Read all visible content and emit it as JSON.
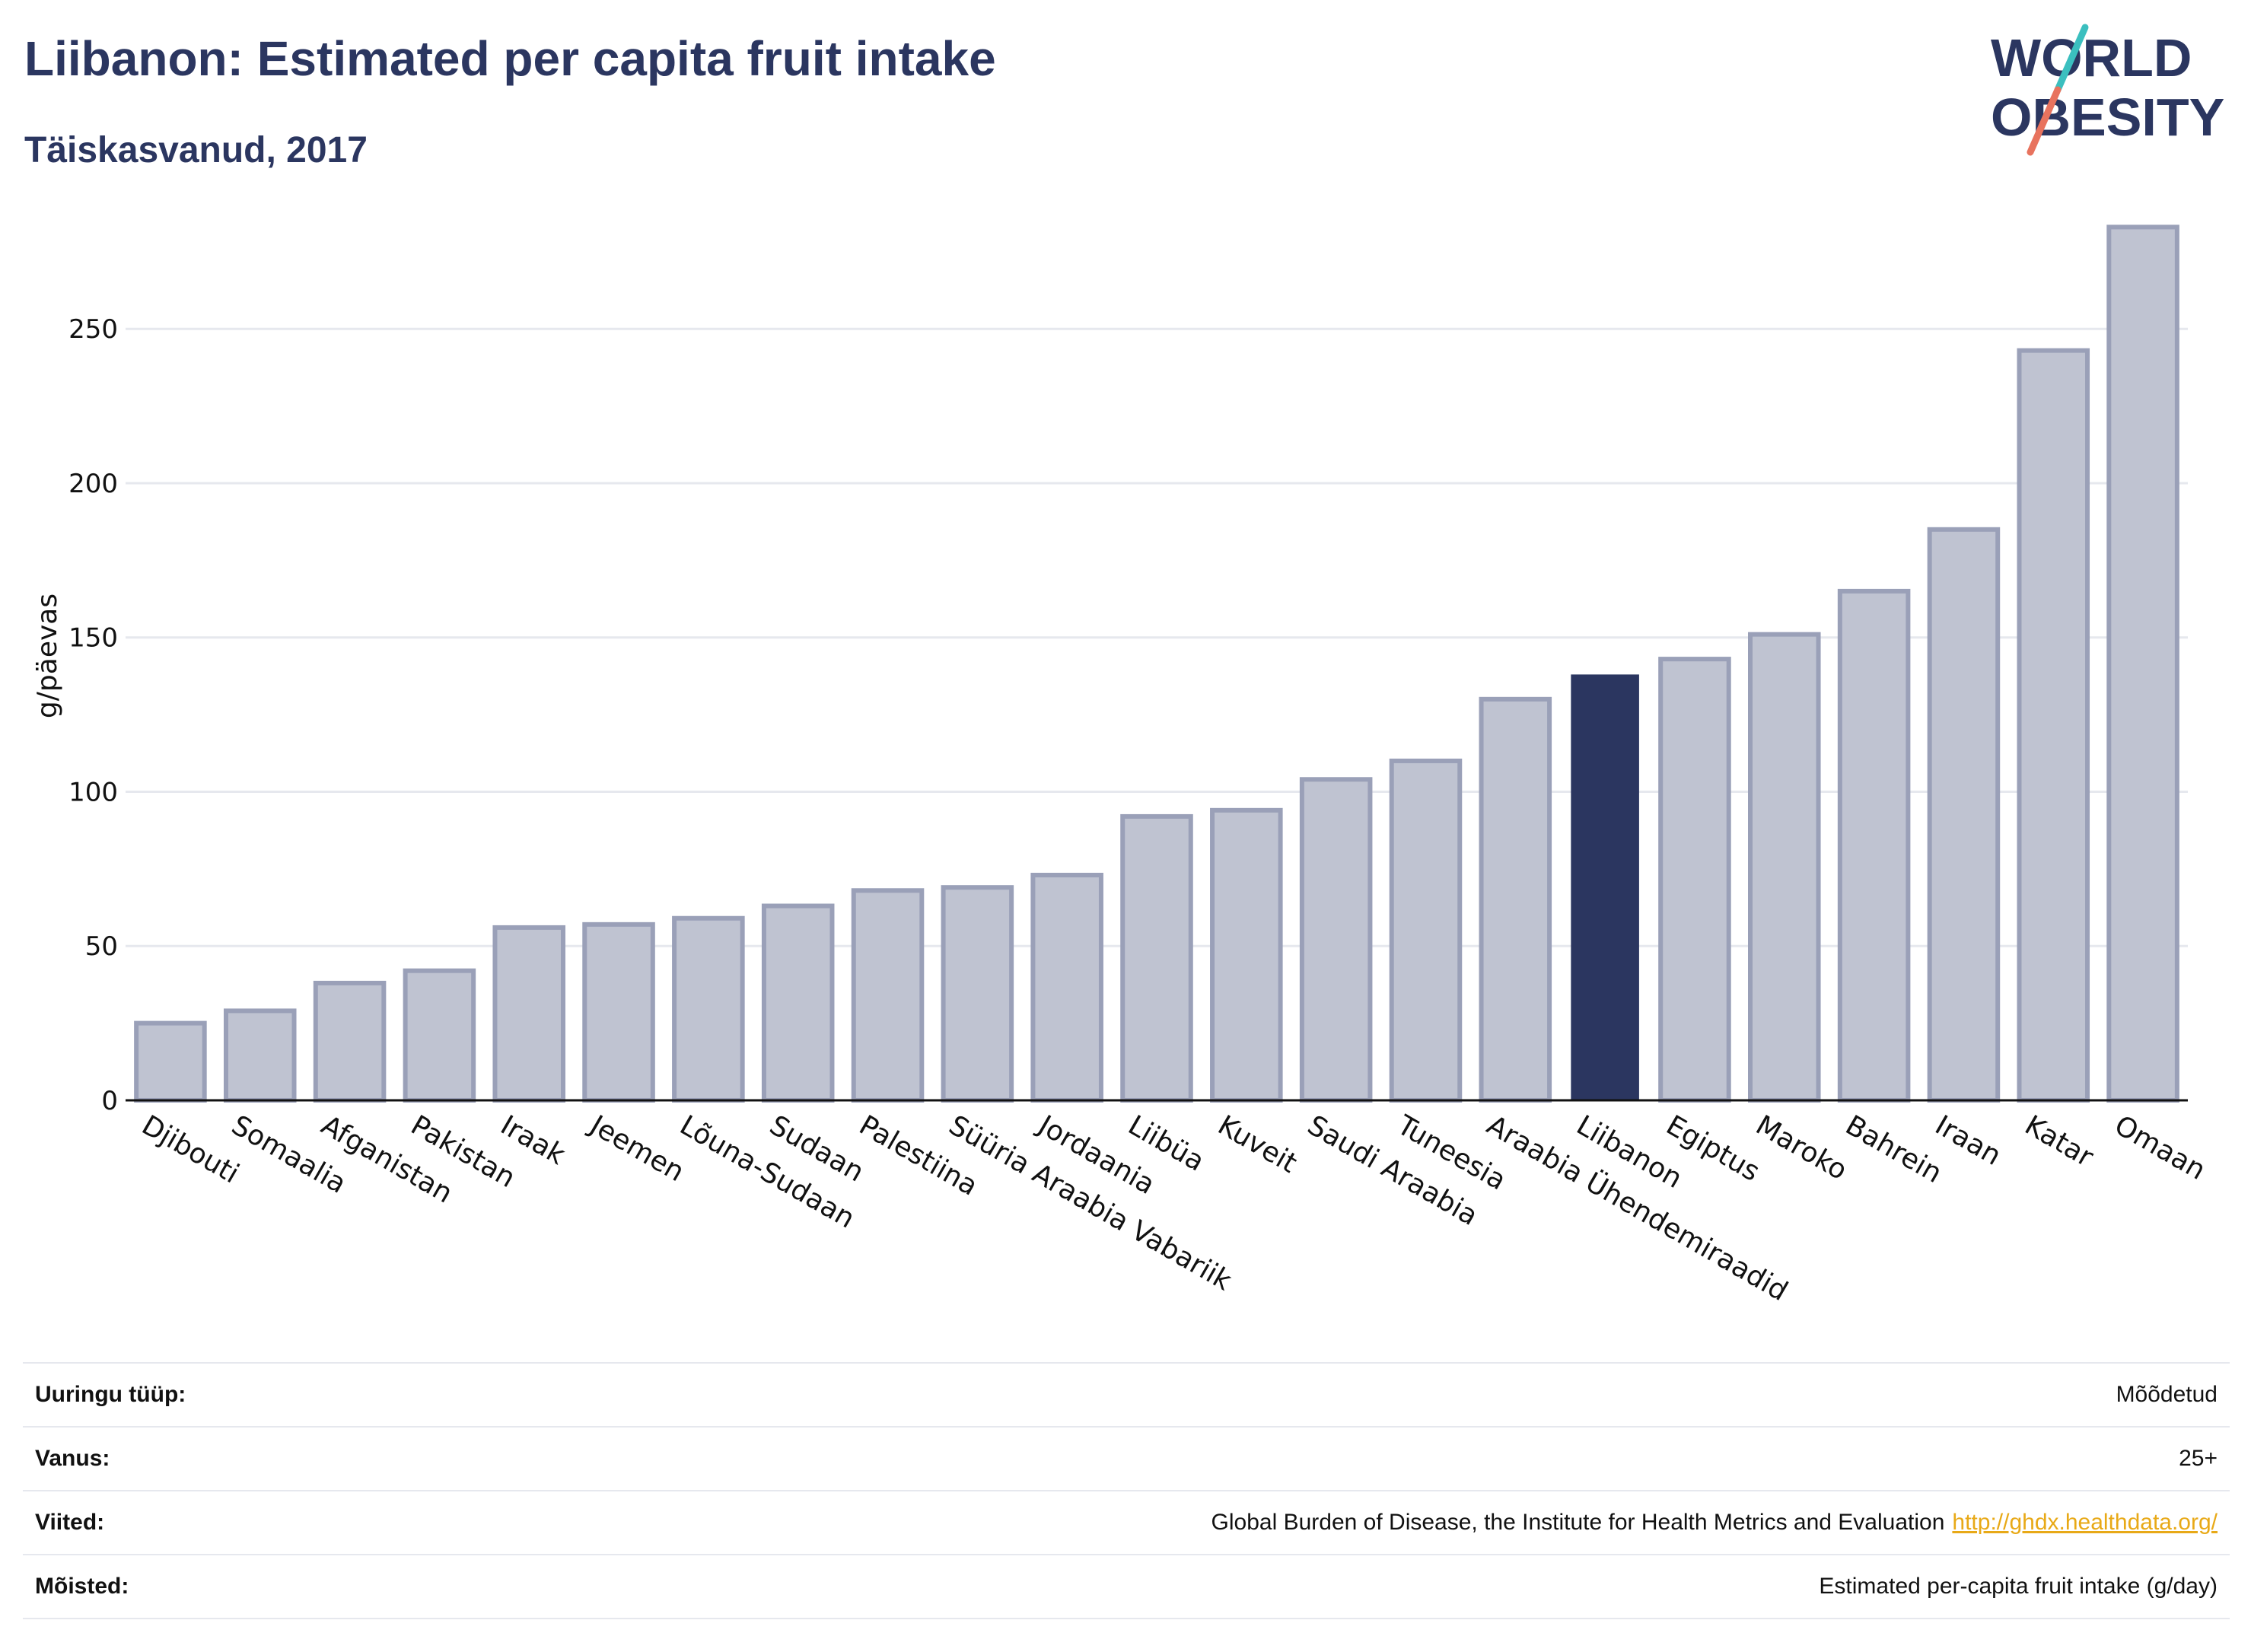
{
  "header": {
    "title": "Liibanon: Estimated per capita fruit intake",
    "subtitle": "Täiskasvanud, 2017",
    "logo_line1": "WORLD",
    "logo_line2": "OBESITY"
  },
  "colors": {
    "title": "#2b3660",
    "bar": "#bfc3d1",
    "bar_edge": "#9aa0b8",
    "highlight": "#2b3660",
    "grid": "#e6e8ee",
    "link": "#e8a917",
    "logo_teal": "#3bbfbf",
    "logo_coral": "#e8735e"
  },
  "chart_data": {
    "type": "bar",
    "title": "Liibanon: Estimated per capita fruit intake",
    "subtitle": "Täiskasvanud, 2017",
    "ylabel": "g/päevas",
    "xlabel": "",
    "ylim": [
      0,
      290
    ],
    "yticks": [
      0,
      50,
      100,
      150,
      200,
      250
    ],
    "grid": true,
    "highlight_category": "Liibanon",
    "categories": [
      "Djibouti",
      "Somaalia",
      "Afganistan",
      "Pakistan",
      "Iraak",
      "Jeemen",
      "Lõuna-Sudaan",
      "Sudaan",
      "Palestiina",
      "Süüria Araabia Vabariik",
      "Jordaania",
      "Liibüa",
      "Kuveit",
      "Saudi Araabia",
      "Tuneesia",
      "Araabia Ühendemiraadid",
      "Liibanon",
      "Egiptus",
      "Maroko",
      "Bahrein",
      "Iraan",
      "Katar",
      "Omaan"
    ],
    "values": [
      25,
      29,
      38,
      42,
      56,
      57,
      59,
      63,
      68,
      69,
      73,
      92,
      94,
      104,
      110,
      130,
      138,
      143,
      151,
      165,
      185,
      243,
      283
    ]
  },
  "meta": [
    {
      "label": "Uuringu tüüp:",
      "value": "Mõõdetud",
      "link": ""
    },
    {
      "label": "Vanus:",
      "value": "25+",
      "link": ""
    },
    {
      "label": "Viited:",
      "value": "Global Burden of Disease, the Institute for Health Metrics and Evaluation",
      "link": "http://ghdx.healthdata.org/"
    },
    {
      "label": "Mõisted:",
      "value": "Estimated per-capita fruit intake (g/day)",
      "link": ""
    }
  ]
}
